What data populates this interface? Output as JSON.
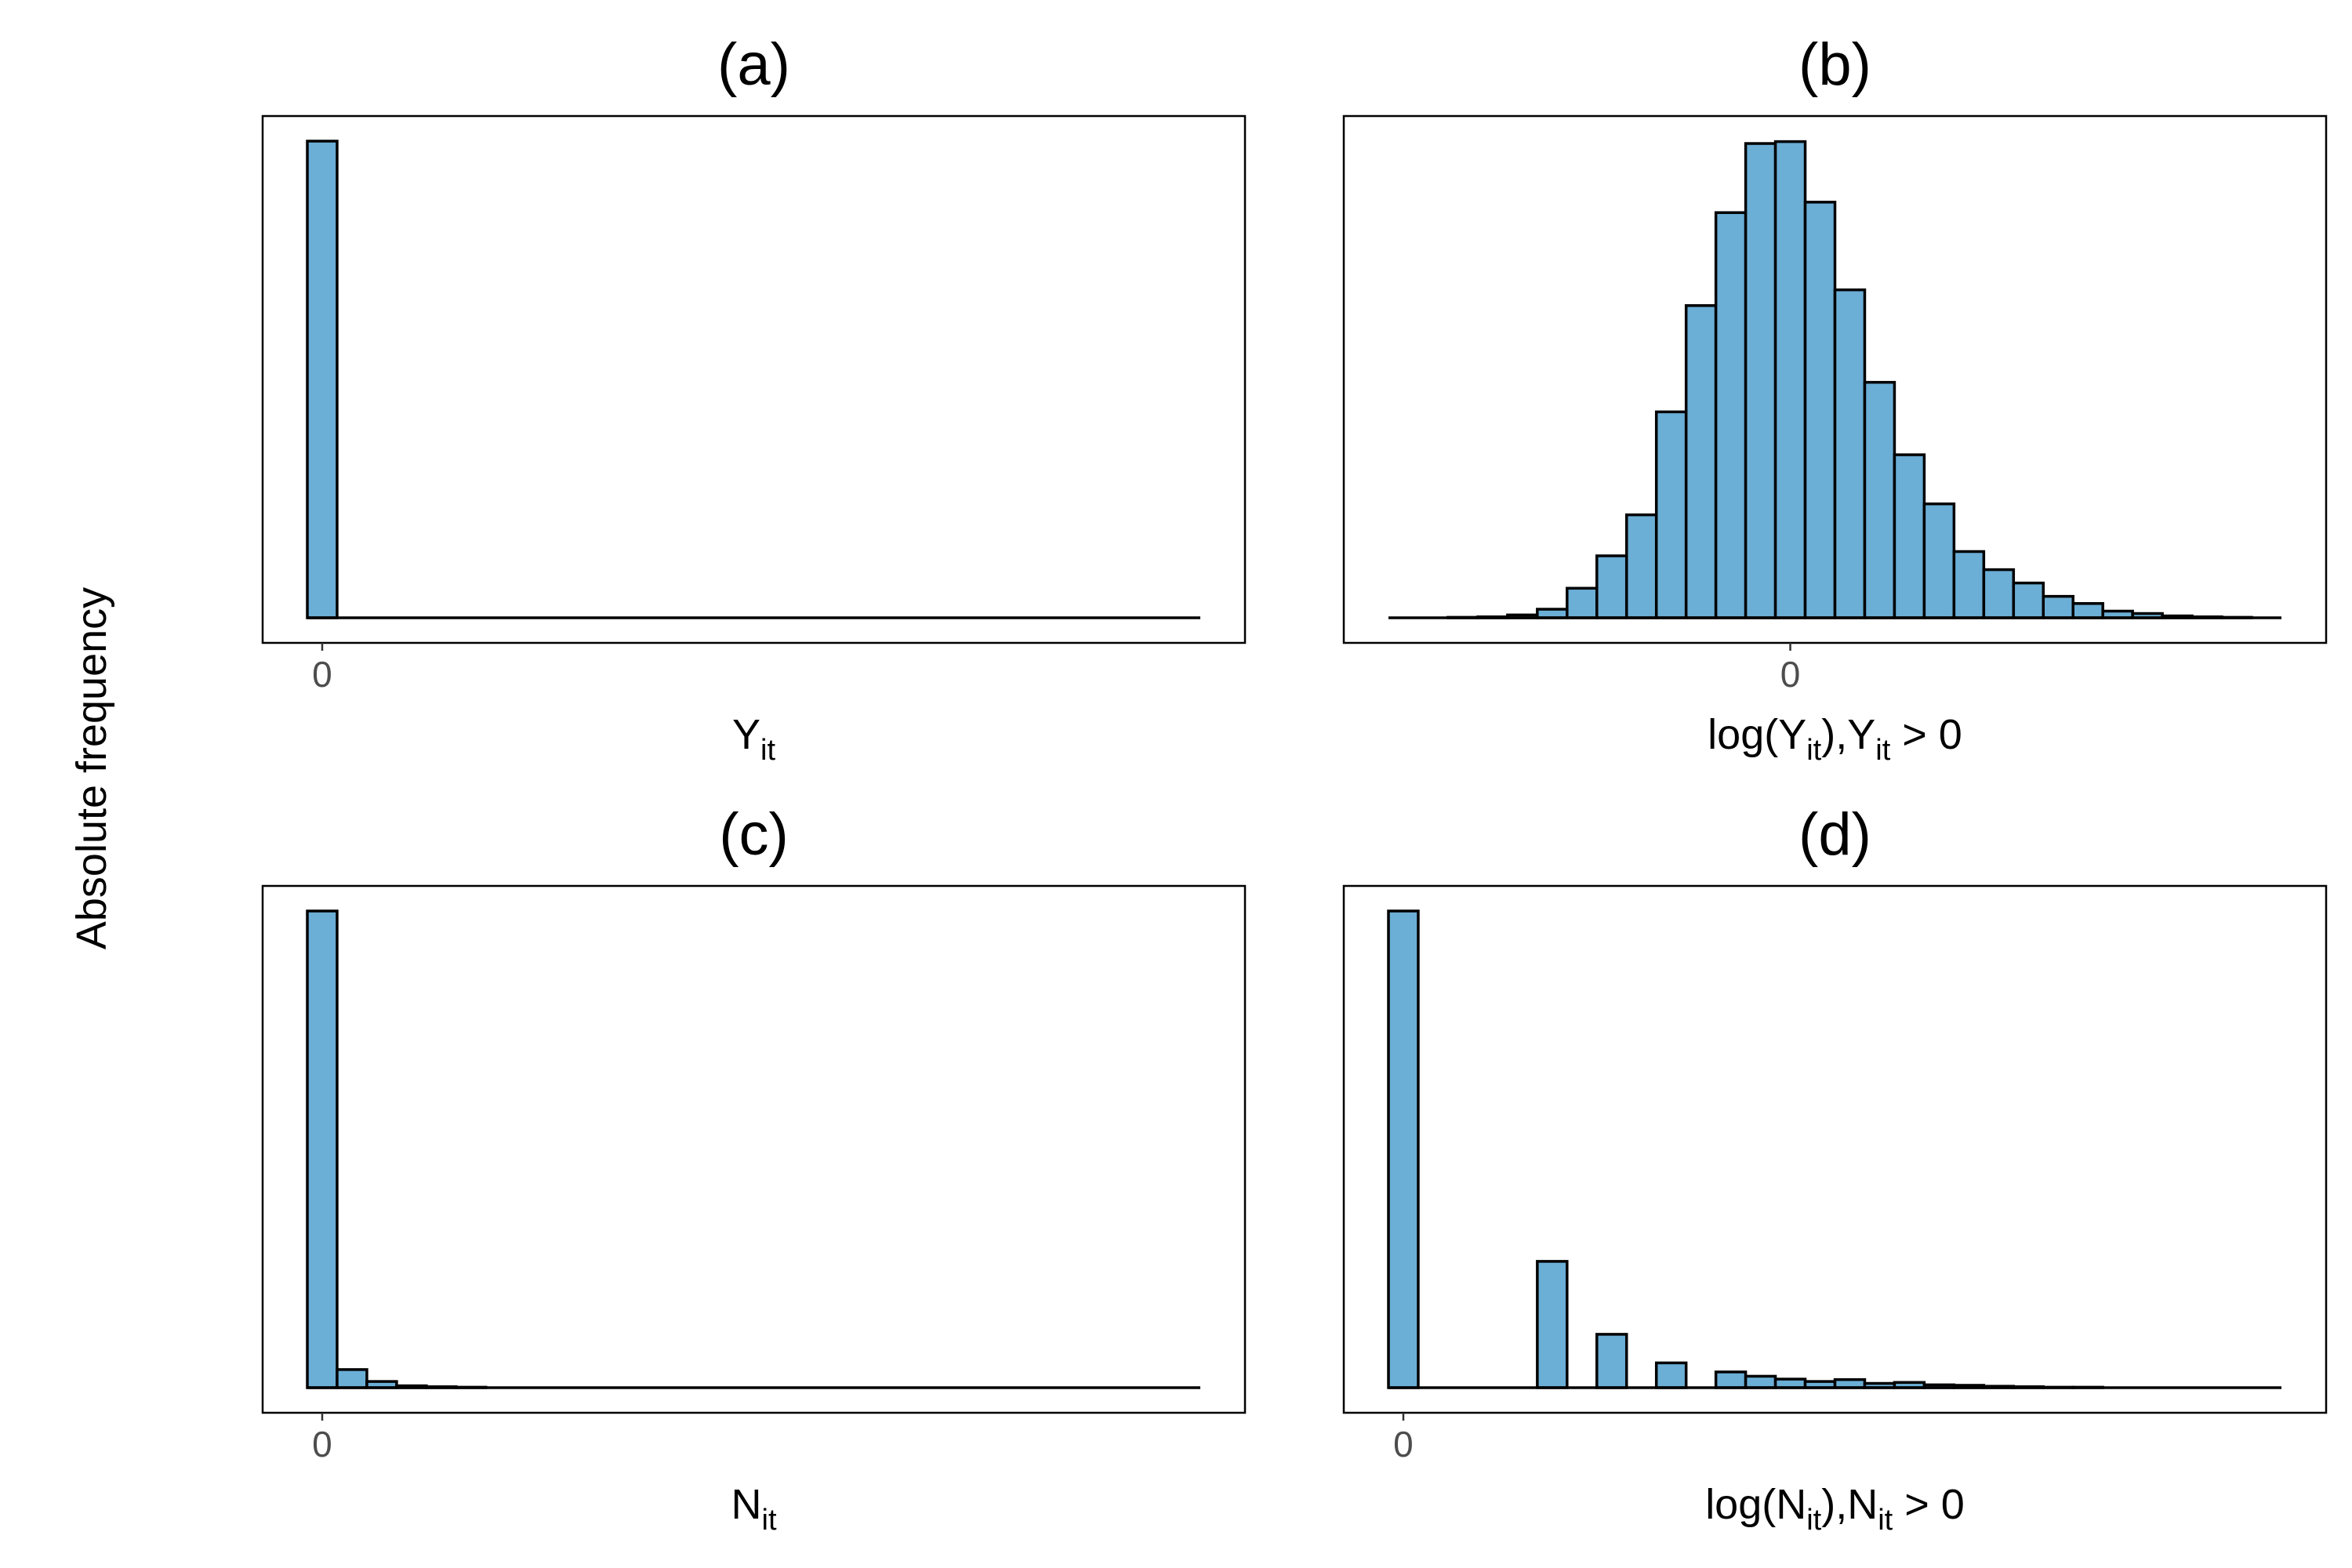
{
  "figure": {
    "ylabel": "Absolute frequency",
    "bar_color": "#6baed6",
    "outline_color": "#000000"
  },
  "chart_data": [
    {
      "type": "bar",
      "title": "(a)",
      "xlabel": {
        "main": "Y",
        "sub": "it",
        "rest": ""
      },
      "xticks": [
        {
          "bin": 0,
          "label": "0"
        }
      ],
      "bins": 30,
      "values": [
        1000,
        0,
        0,
        0,
        0,
        0,
        0,
        0,
        0,
        0,
        0,
        0,
        0,
        0,
        0,
        0,
        0,
        0,
        0,
        0,
        0,
        0,
        0,
        0,
        0,
        0,
        0,
        0,
        0,
        0
      ],
      "ylim": [
        0,
        1000
      ]
    },
    {
      "type": "bar",
      "title": "(b)",
      "xlabel": {
        "main": "log(Y",
        "sub": "it",
        "mid": "),Y",
        "sub2": "it",
        "rest": " > 0"
      },
      "xticks": [
        {
          "bin": 13,
          "label": "0"
        }
      ],
      "bins": 30,
      "values": [
        0,
        0,
        1,
        2,
        6,
        18,
        62,
        130,
        216,
        432,
        655,
        850,
        995,
        999,
        872,
        688,
        494,
        342,
        239,
        139,
        101,
        73,
        45,
        30,
        14,
        9,
        4,
        2,
        1,
        0
      ],
      "ylim": [
        0,
        1000
      ]
    },
    {
      "type": "bar",
      "title": "(c)",
      "xlabel": {
        "main": "N",
        "sub": "it",
        "rest": ""
      },
      "xticks": [
        {
          "bin": 0,
          "label": "0"
        }
      ],
      "bins": 30,
      "values": [
        1000,
        38,
        13,
        4,
        2,
        1,
        0,
        0,
        0,
        0,
        0,
        0,
        0,
        0,
        0,
        0,
        0,
        0,
        0,
        0,
        0,
        0,
        0,
        0,
        0,
        0,
        0,
        0,
        0,
        0
      ],
      "ylim": [
        0,
        1000
      ]
    },
    {
      "type": "bar",
      "title": "(d)",
      "xlabel": {
        "main": "log(N",
        "sub": "it",
        "mid": "),N",
        "sub2": "it",
        "rest": " > 0"
      },
      "xticks": [
        {
          "bin": 0,
          "label": "0"
        }
      ],
      "bins": 30,
      "values": [
        1000,
        0,
        0,
        0,
        0,
        265,
        0,
        112,
        0,
        52,
        0,
        33,
        24,
        18,
        13,
        17,
        9,
        11,
        6,
        5,
        3,
        2,
        1,
        1,
        0,
        0,
        0,
        0,
        0,
        0
      ],
      "ylim": [
        0,
        1000
      ]
    }
  ]
}
